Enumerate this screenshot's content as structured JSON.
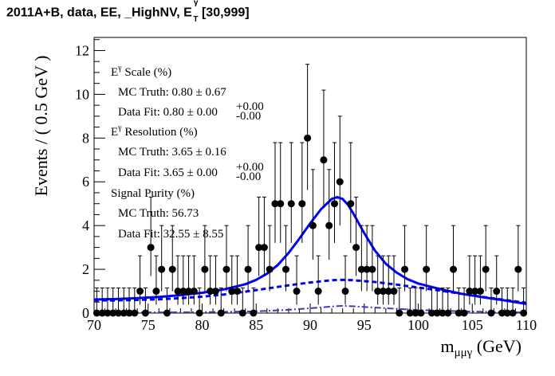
{
  "header": {
    "title_main": "2011A+B, data, EE, _HighNV, E",
    "title_sup": "γ",
    "title_sub": "T",
    "title_range": "[30,999]"
  },
  "annotations": {
    "scale_head": "E",
    "scale_head_sup": "γ",
    "scale_head_rest": " Scale (%)",
    "scale_mc": "MC Truth: 0.80 ± 0.67",
    "scale_fit": "Data Fit: 0.80 ± 0.00",
    "scale_fit_up": "+0.00",
    "scale_fit_dn": "-0.00",
    "res_head": "E",
    "res_head_sup": "γ",
    "res_head_rest": " Resolution (%)",
    "res_mc": "MC Truth: 3.65 ± 0.16",
    "res_fit": "Data Fit: 3.65 ± 0.00",
    "res_fit_up": "+0.00",
    "res_fit_dn": "-0.00",
    "pur_head": "Signal Purity (%)",
    "pur_mc": "MC Truth: 56.73",
    "pur_fit": "Data Fit: 32.55 ± 8.55"
  },
  "chart_data": {
    "type": "scatter",
    "xlabel_main": "m",
    "xlabel_sub": "μμγ",
    "xlabel_unit": " (GeV)",
    "ylabel": "Events / ( 0.5 GeV )",
    "xlim": [
      70,
      110
    ],
    "ylim": [
      0,
      12.6
    ],
    "x_ticks": [
      70,
      75,
      80,
      85,
      90,
      95,
      100,
      105,
      110
    ],
    "y_ticks": [
      0,
      2,
      4,
      6,
      8,
      10,
      12
    ],
    "data_points": {
      "x": [
        70.25,
        70.75,
        71.25,
        71.75,
        72.25,
        72.75,
        73.25,
        73.75,
        74.25,
        74.75,
        75.25,
        75.75,
        76.25,
        76.75,
        77.25,
        77.75,
        78.25,
        78.75,
        79.25,
        79.75,
        80.25,
        80.75,
        81.25,
        81.75,
        82.25,
        82.75,
        83.25,
        83.75,
        84.25,
        84.75,
        85.25,
        85.75,
        86.25,
        86.75,
        87.25,
        87.75,
        88.25,
        88.75,
        89.25,
        89.75,
        90.25,
        90.75,
        91.25,
        91.75,
        92.25,
        92.75,
        93.25,
        93.75,
        94.25,
        94.75,
        95.25,
        95.75,
        96.25,
        96.75,
        97.25,
        97.75,
        98.25,
        98.75,
        99.25,
        99.75,
        100.25,
        100.75,
        101.25,
        101.75,
        102.25,
        102.75,
        103.25,
        103.75,
        104.25,
        104.75,
        105.25,
        105.75,
        106.25,
        106.75,
        107.25,
        107.75,
        108.25,
        108.75,
        109.25,
        109.75
      ],
      "y": [
        0,
        0,
        0,
        0,
        0,
        0,
        0,
        0,
        1,
        0,
        3,
        1,
        2,
        0,
        2,
        1,
        1,
        1,
        1,
        0,
        2,
        1,
        1,
        0,
        2,
        1,
        1,
        0,
        2,
        0,
        3,
        3,
        2,
        5,
        5,
        2,
        5,
        1,
        5,
        8,
        4,
        1,
        7,
        4,
        5,
        6,
        1,
        5,
        3,
        2,
        2,
        2,
        1,
        1,
        1,
        1,
        0,
        2,
        0,
        0,
        0,
        2,
        0,
        0,
        0,
        0,
        2,
        0,
        0,
        1,
        1,
        1,
        2,
        0,
        1,
        0,
        0,
        0,
        2,
        0
      ]
    },
    "total_fit": {
      "x": [
        70,
        72,
        74,
        76,
        78,
        80,
        82,
        84,
        85,
        86,
        87,
        88,
        89,
        90,
        91,
        92,
        92.5,
        93,
        93.5,
        94,
        95,
        96,
        97,
        98,
        99,
        100,
        102,
        104,
        106,
        108,
        110
      ],
      "y": [
        0.62,
        0.64,
        0.68,
        0.74,
        0.82,
        0.93,
        1.08,
        1.32,
        1.52,
        1.8,
        2.2,
        2.75,
        3.4,
        4.1,
        4.75,
        5.22,
        5.3,
        5.22,
        4.95,
        4.55,
        3.65,
        2.85,
        2.25,
        1.85,
        1.55,
        1.35,
        1.1,
        0.88,
        0.72,
        0.58,
        0.42
      ]
    },
    "background_fit": {
      "x": [
        70,
        72,
        74,
        76,
        78,
        80,
        82,
        84,
        86,
        88,
        90,
        92,
        93,
        94,
        96,
        98,
        100,
        102,
        104,
        106,
        108,
        110
      ],
      "y": [
        0.58,
        0.58,
        0.6,
        0.63,
        0.68,
        0.75,
        0.85,
        0.98,
        1.12,
        1.27,
        1.4,
        1.5,
        1.52,
        1.5,
        1.42,
        1.3,
        1.17,
        1.03,
        0.88,
        0.74,
        0.6,
        0.47
      ]
    },
    "signal_pdf": {
      "x": [
        70,
        80,
        85,
        88,
        90,
        92,
        93,
        94,
        96,
        100,
        105,
        110
      ],
      "y": [
        0.02,
        0.04,
        0.08,
        0.15,
        0.22,
        0.3,
        0.33,
        0.31,
        0.25,
        0.14,
        0.07,
        0.03
      ]
    },
    "colors": {
      "total_fit": "#0000ff",
      "background_fit": "#0000ff",
      "signal_pdf": "#3b3bb8",
      "points": "#000000"
    }
  }
}
